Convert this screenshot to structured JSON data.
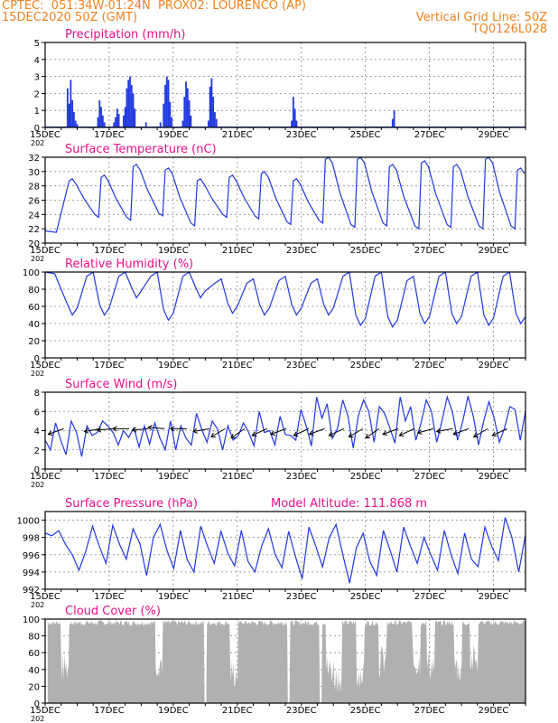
{
  "header": {
    "line1": "CPTEC:  051:34W-01:24N  PROX02: LOURENCO (AP)",
    "line2": "15DEC2020 50Z (GMT)",
    "grid_note": "Vertical Grid Line: 50Z",
    "code": "TQ0126L028"
  },
  "colors": {
    "header": "#f0821e",
    "title": "#e8108c",
    "series": "#2038e0",
    "cloud": "#b0b0b0",
    "grid": "#888888"
  },
  "x_axis": {
    "tick_labels": [
      "15DEC",
      "17DEC",
      "19DEC",
      "21DEC",
      "23DEC",
      "25DEC",
      "27DEC",
      "29DEC"
    ],
    "tick_days": [
      0,
      2,
      4,
      6,
      8,
      10,
      12,
      14
    ],
    "range_days": [
      0,
      15
    ],
    "year_prefix": "202"
  },
  "chart_data": [
    {
      "type": "bar",
      "title": "Precipitation (mm/h)",
      "ylim": [
        0,
        5
      ],
      "yticks": [
        0,
        1,
        2,
        3,
        4,
        5
      ],
      "bars": [
        [
          0.7,
          2.3
        ],
        [
          0.75,
          1.4
        ],
        [
          0.8,
          2.8
        ],
        [
          0.85,
          1.6
        ],
        [
          0.9,
          0.9
        ],
        [
          0.95,
          0.4
        ],
        [
          1.0,
          0.2
        ],
        [
          1.65,
          0.6
        ],
        [
          1.7,
          1.6
        ],
        [
          1.75,
          1.2
        ],
        [
          1.8,
          0.7
        ],
        [
          1.85,
          0.3
        ],
        [
          2.15,
          0.3
        ],
        [
          2.2,
          0.6
        ],
        [
          2.25,
          1.1
        ],
        [
          2.3,
          0.8
        ],
        [
          2.45,
          0.7
        ],
        [
          2.5,
          1.2
        ],
        [
          2.55,
          2.3
        ],
        [
          2.6,
          2.8
        ],
        [
          2.65,
          3.0
        ],
        [
          2.7,
          2.5
        ],
        [
          2.75,
          2.0
        ],
        [
          2.8,
          1.1
        ],
        [
          3.15,
          0.3
        ],
        [
          3.6,
          0.3
        ],
        [
          3.7,
          1.4
        ],
        [
          3.75,
          2.5
        ],
        [
          3.8,
          3.0
        ],
        [
          3.85,
          2.8
        ],
        [
          3.9,
          1.5
        ],
        [
          3.95,
          0.6
        ],
        [
          4.3,
          0.4
        ],
        [
          4.35,
          1.8
        ],
        [
          4.4,
          2.7
        ],
        [
          4.45,
          2.3
        ],
        [
          4.5,
          1.6
        ],
        [
          4.55,
          0.7
        ],
        [
          5.1,
          0.4
        ],
        [
          5.15,
          2.4
        ],
        [
          5.2,
          2.9
        ],
        [
          5.25,
          1.8
        ],
        [
          5.3,
          0.9
        ],
        [
          5.35,
          0.5
        ],
        [
          7.7,
          0.4
        ],
        [
          7.75,
          1.8
        ],
        [
          7.8,
          1.1
        ],
        [
          7.85,
          0.4
        ],
        [
          10.85,
          0.5
        ],
        [
          10.9,
          1.0
        ]
      ]
    },
    {
      "type": "line",
      "title": "Surface Temperature (nC)",
      "ylim": [
        20,
        32
      ],
      "yticks": [
        20,
        22,
        24,
        26,
        28,
        30,
        32
      ],
      "max": [
        29,
        29.5,
        31,
        30.5,
        29,
        29.5,
        30,
        29,
        32,
        32,
        31,
        31.5,
        31,
        32,
        30.5,
        30.2
      ],
      "min": [
        21.5,
        23.6,
        23.2,
        23.8,
        22.4,
        23.6,
        23.4,
        22.6,
        22.8,
        22.2,
        22.4,
        22.0,
        22.2,
        22.0,
        22.0
      ]
    },
    {
      "type": "line",
      "title": "Relative Humidity (%)",
      "ylim": [
        0,
        100
      ],
      "yticks": [
        0,
        20,
        40,
        60,
        80,
        100
      ],
      "min": [
        50,
        50,
        70,
        44,
        70,
        52,
        50,
        50,
        50,
        38,
        36,
        40,
        40,
        38,
        40,
        45
      ],
      "max": [
        100,
        100,
        100,
        100,
        92,
        92,
        95,
        92,
        100,
        100,
        95,
        100,
        100,
        100,
        100
      ]
    },
    {
      "type": "line",
      "title": "Surface Wind (m/s)",
      "ylim": [
        0,
        8
      ],
      "yticks": [
        0,
        2,
        4,
        6,
        8
      ],
      "values": [
        3,
        2,
        4.8,
        3,
        1.5,
        5,
        3.8,
        1.3,
        4.5,
        3.5,
        3.8,
        5,
        4.5,
        3.8,
        2.5,
        4,
        3.3,
        4.3,
        2.3,
        4.5,
        2.6,
        4.8,
        3.2,
        2,
        5,
        2,
        4.5,
        3.2,
        2.5,
        5.8,
        4.1,
        2.8,
        5,
        4.2,
        2,
        4.5,
        3,
        3.5,
        4.8,
        3.8,
        2.4,
        6,
        3.8,
        4,
        2.5,
        5.5,
        3.6,
        3.5,
        3,
        6.2,
        4.5,
        2.4,
        7.5,
        5.3,
        6.8,
        3.2,
        4.2,
        7.2,
        5.5,
        2.2,
        5.6,
        7.2,
        6,
        2.8,
        6.5,
        5.8,
        4.3,
        2.7,
        7.5,
        5,
        6.5,
        3,
        4.8,
        7.2,
        6,
        2.8,
        5,
        7.5,
        6,
        3,
        5,
        7.6,
        5.5,
        2.5,
        5,
        7,
        5.3,
        2.8,
        4.3,
        6.5,
        6.2,
        3,
        6
      ],
      "arrow_days": [
        0.35,
        1.5,
        1.9,
        2.4,
        3.0,
        3.5,
        4.2,
        4.9,
        5.4,
        6.0,
        6.7,
        7.3,
        8.0,
        8.5,
        9.1,
        9.7,
        10.2,
        10.8,
        11.3,
        11.9,
        12.5,
        13.0,
        13.6,
        14.2
      ],
      "arrow_angles": [
        200,
        190,
        185,
        180,
        185,
        175,
        180,
        190,
        210,
        215,
        205,
        200,
        205,
        200,
        205,
        210,
        215,
        200,
        205,
        195,
        190,
        200,
        210,
        205
      ]
    },
    {
      "type": "line",
      "title": "Surface Pressure (hPa)",
      "subtitle": "Model Altitude: 111.868  m",
      "ylim": [
        992,
        1001
      ],
      "yticks": [
        992,
        994,
        996,
        998,
        1000
      ],
      "values": [
        998.5,
        998.2,
        998.8,
        997.2,
        996.0,
        994.2,
        996.4,
        999.3,
        997.0,
        995.0,
        999.4,
        997.2,
        995.5,
        999.0,
        997.3,
        993.6,
        998.0,
        999.5,
        996.5,
        994.4,
        998.8,
        995.4,
        994.0,
        999.3,
        997.0,
        995.0,
        998.7,
        996.2,
        994.7,
        998.8,
        995.2,
        994.0,
        997.0,
        999.0,
        996.0,
        994.5,
        998.7,
        995.8,
        993.2,
        999.2,
        997.0,
        994.6,
        998.0,
        999.5,
        996.0,
        992.7,
        996.8,
        998.5,
        995.2,
        993.6,
        998.8,
        996.5,
        994.0,
        999.2,
        997.0,
        995.0,
        998.0,
        996.0,
        994.2,
        998.8,
        996.0,
        993.8,
        998.5,
        995.5,
        994.6,
        999.2,
        997.0,
        995.3,
        1000.3,
        998.0,
        994.0,
        998.3
      ]
    },
    {
      "type": "bar",
      "title": "Cloud Cover (%)",
      "ylim": [
        0,
        100
      ],
      "yticks": [
        0,
        20,
        40,
        60,
        80,
        100
      ]
    }
  ]
}
